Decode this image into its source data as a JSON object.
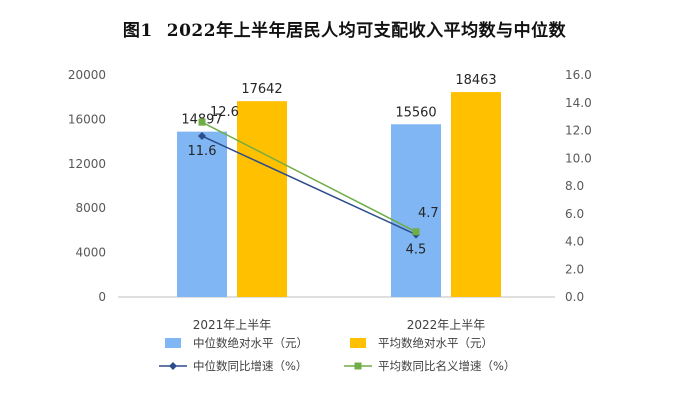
{
  "figure_label": "图1",
  "title": "2022年上半年居民人均可支配收入平均数与中位数",
  "colors": {
    "median_bar": "#7fb6f3",
    "mean_bar": "#ffc000",
    "median_line": "#2e4d8c",
    "mean_line": "#70ad47",
    "axis": "#bfbfbf",
    "text": "#595959"
  },
  "chart_data": {
    "type": "bar",
    "title": "2022年上半年居民人均可支配收入平均数与中位数",
    "categories": [
      "2021年上半年",
      "2022年上半年"
    ],
    "ylim": [
      0,
      20000
    ],
    "y2lim": [
      0,
      16
    ],
    "y_ticks": [
      "0",
      "4000",
      "8000",
      "12000",
      "16000",
      "20000"
    ],
    "y2_ticks": [
      "0.0",
      "2.0",
      "4.0",
      "6.0",
      "8.0",
      "10.0",
      "12.0",
      "14.0",
      "16.0"
    ],
    "grid": false,
    "legend_position": "bottom",
    "series": [
      {
        "name": "中位数绝对水平（元）",
        "kind": "bar",
        "axis": "left",
        "values": [
          14897,
          15560
        ],
        "labels": [
          "14897",
          "15560"
        ],
        "color": "#7fb6f3"
      },
      {
        "name": "平均数绝对水平（元）",
        "kind": "bar",
        "axis": "left",
        "values": [
          17642,
          18463
        ],
        "labels": [
          "17642",
          "18463"
        ],
        "color": "#ffc000"
      },
      {
        "name": "中位数同比增速（%）",
        "kind": "line",
        "axis": "right",
        "marker": "diamond",
        "values": [
          11.6,
          4.5
        ],
        "labels": [
          "11.6",
          "4.5"
        ],
        "color": "#2e4d8c"
      },
      {
        "name": "平均数同比名义增速（%）",
        "kind": "line",
        "axis": "right",
        "marker": "square",
        "values": [
          12.6,
          4.7
        ],
        "labels": [
          "12.6",
          "4.7"
        ],
        "color": "#70ad47"
      }
    ]
  }
}
